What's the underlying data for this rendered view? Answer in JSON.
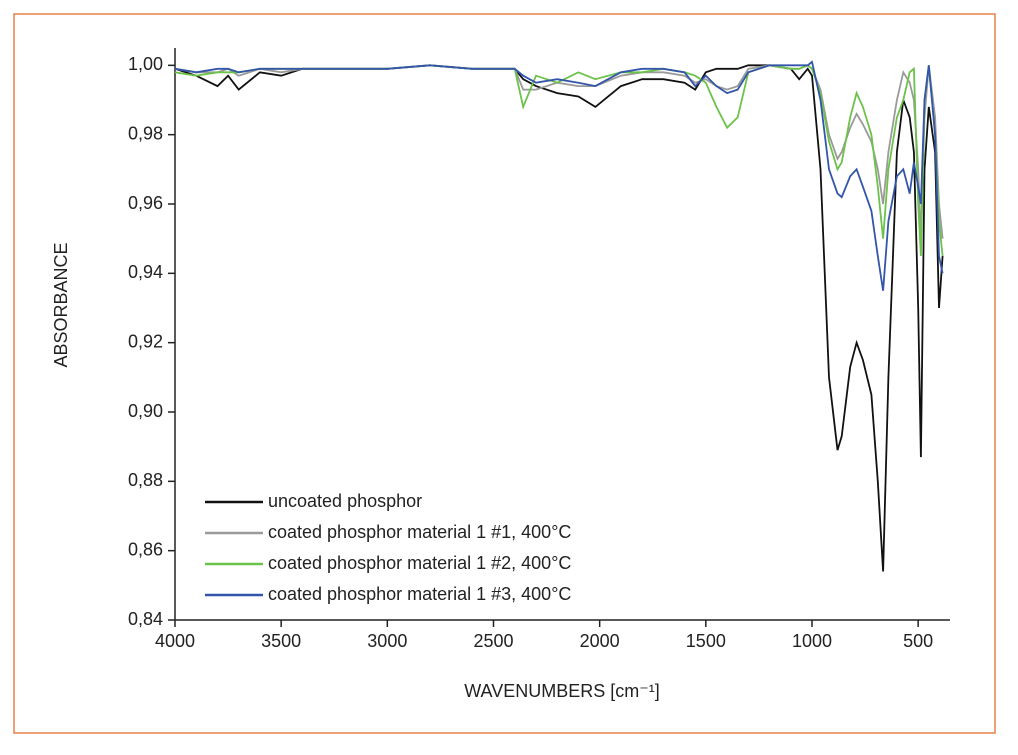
{
  "chart_data": {
    "type": "line",
    "xlabel": "WAVENUMBERS [cm⁻¹]",
    "ylabel": "ABSORBANCE",
    "x": [
      4000,
      3900,
      3800,
      3750,
      3700,
      3600,
      3500,
      3400,
      3300,
      3200,
      3000,
      2800,
      2600,
      2400,
      2360,
      2300,
      2200,
      2100,
      2020,
      1900,
      1800,
      1700,
      1600,
      1550,
      1500,
      1450,
      1400,
      1350,
      1300,
      1200,
      1100,
      1060,
      1020,
      1000,
      960,
      920,
      880,
      860,
      820,
      790,
      760,
      720,
      690,
      665,
      640,
      600,
      570,
      540,
      520,
      500,
      487,
      470,
      450,
      420,
      402,
      385
    ],
    "series": [
      {
        "name": "uncoated phosphor",
        "color": "#111111",
        "values": [
          0.999,
          0.997,
          0.994,
          0.997,
          0.993,
          0.998,
          0.997,
          0.999,
          0.999,
          0.999,
          0.999,
          1.0,
          0.999,
          0.999,
          0.996,
          0.994,
          0.992,
          0.991,
          0.988,
          0.994,
          0.996,
          0.996,
          0.995,
          0.993,
          0.998,
          0.999,
          0.999,
          0.999,
          1.0,
          1.0,
          0.999,
          0.996,
          0.999,
          0.997,
          0.97,
          0.91,
          0.889,
          0.893,
          0.913,
          0.92,
          0.915,
          0.905,
          0.88,
          0.854,
          0.91,
          0.975,
          0.99,
          0.985,
          0.975,
          0.93,
          0.887,
          0.97,
          0.988,
          0.975,
          0.93,
          0.945
        ]
      },
      {
        "name": "coated phosphor material 1 #1, 400°C",
        "color": "#9a9a9a",
        "values": [
          0.999,
          0.998,
          0.998,
          0.999,
          0.997,
          0.999,
          0.998,
          0.999,
          0.999,
          0.999,
          0.999,
          1.0,
          0.999,
          0.999,
          0.993,
          0.993,
          0.995,
          0.994,
          0.994,
          0.997,
          0.998,
          0.998,
          0.997,
          0.995,
          0.996,
          0.994,
          0.993,
          0.994,
          0.999,
          1.0,
          0.999,
          0.999,
          1.0,
          0.999,
          0.993,
          0.98,
          0.973,
          0.975,
          0.982,
          0.986,
          0.983,
          0.978,
          0.97,
          0.96,
          0.975,
          0.99,
          0.998,
          0.995,
          0.99,
          0.97,
          0.95,
          0.985,
          1.0,
          0.985,
          0.96,
          0.95
        ]
      },
      {
        "name": "coated phosphor material 1 #2, 400°C",
        "color": "#6cc24a",
        "values": [
          0.998,
          0.997,
          0.998,
          0.998,
          0.998,
          0.999,
          0.999,
          0.999,
          0.999,
          0.999,
          0.999,
          1.0,
          0.999,
          0.999,
          0.988,
          0.997,
          0.995,
          0.998,
          0.996,
          0.998,
          0.998,
          0.999,
          0.998,
          0.997,
          0.995,
          0.988,
          0.982,
          0.985,
          0.998,
          1.0,
          0.999,
          0.999,
          1.0,
          0.999,
          0.992,
          0.978,
          0.97,
          0.972,
          0.985,
          0.992,
          0.988,
          0.98,
          0.965,
          0.95,
          0.97,
          0.985,
          0.99,
          0.998,
          0.999,
          0.96,
          0.945,
          0.99,
          1.0,
          0.98,
          0.955,
          0.945
        ]
      },
      {
        "name": "coated phosphor material 1 #3, 400°C",
        "color": "#3355aa",
        "values": [
          0.999,
          0.998,
          0.999,
          0.999,
          0.998,
          0.999,
          0.999,
          0.999,
          0.999,
          0.999,
          0.999,
          1.0,
          0.999,
          0.999,
          0.997,
          0.995,
          0.996,
          0.995,
          0.994,
          0.998,
          0.999,
          0.999,
          0.998,
          0.994,
          0.997,
          0.994,
          0.992,
          0.993,
          0.998,
          1.0,
          1.0,
          1.0,
          1.0,
          1.001,
          0.99,
          0.97,
          0.963,
          0.962,
          0.968,
          0.97,
          0.965,
          0.958,
          0.945,
          0.935,
          0.955,
          0.968,
          0.97,
          0.963,
          0.972,
          0.965,
          0.96,
          0.99,
          1.0,
          0.98,
          0.945,
          0.94
        ]
      }
    ],
    "xlim": [
      4000,
      350
    ],
    "xticks": [
      4000,
      3500,
      3000,
      2500,
      2000,
      1500,
      1000,
      500
    ],
    "ylim": [
      0.84,
      1.005
    ],
    "yticks": [
      {
        "value": 0.84,
        "label": "0,84"
      },
      {
        "value": 0.86,
        "label": "0,86"
      },
      {
        "value": 0.88,
        "label": "0,88"
      },
      {
        "value": 0.9,
        "label": "0,90"
      },
      {
        "value": 0.92,
        "label": "0,92"
      },
      {
        "value": 0.94,
        "label": "0,94"
      },
      {
        "value": 0.96,
        "label": "0,96"
      },
      {
        "value": 0.98,
        "label": "0,98"
      },
      {
        "value": 1.0,
        "label": "1,00"
      }
    ],
    "legend": "lower left",
    "grid": false
  }
}
